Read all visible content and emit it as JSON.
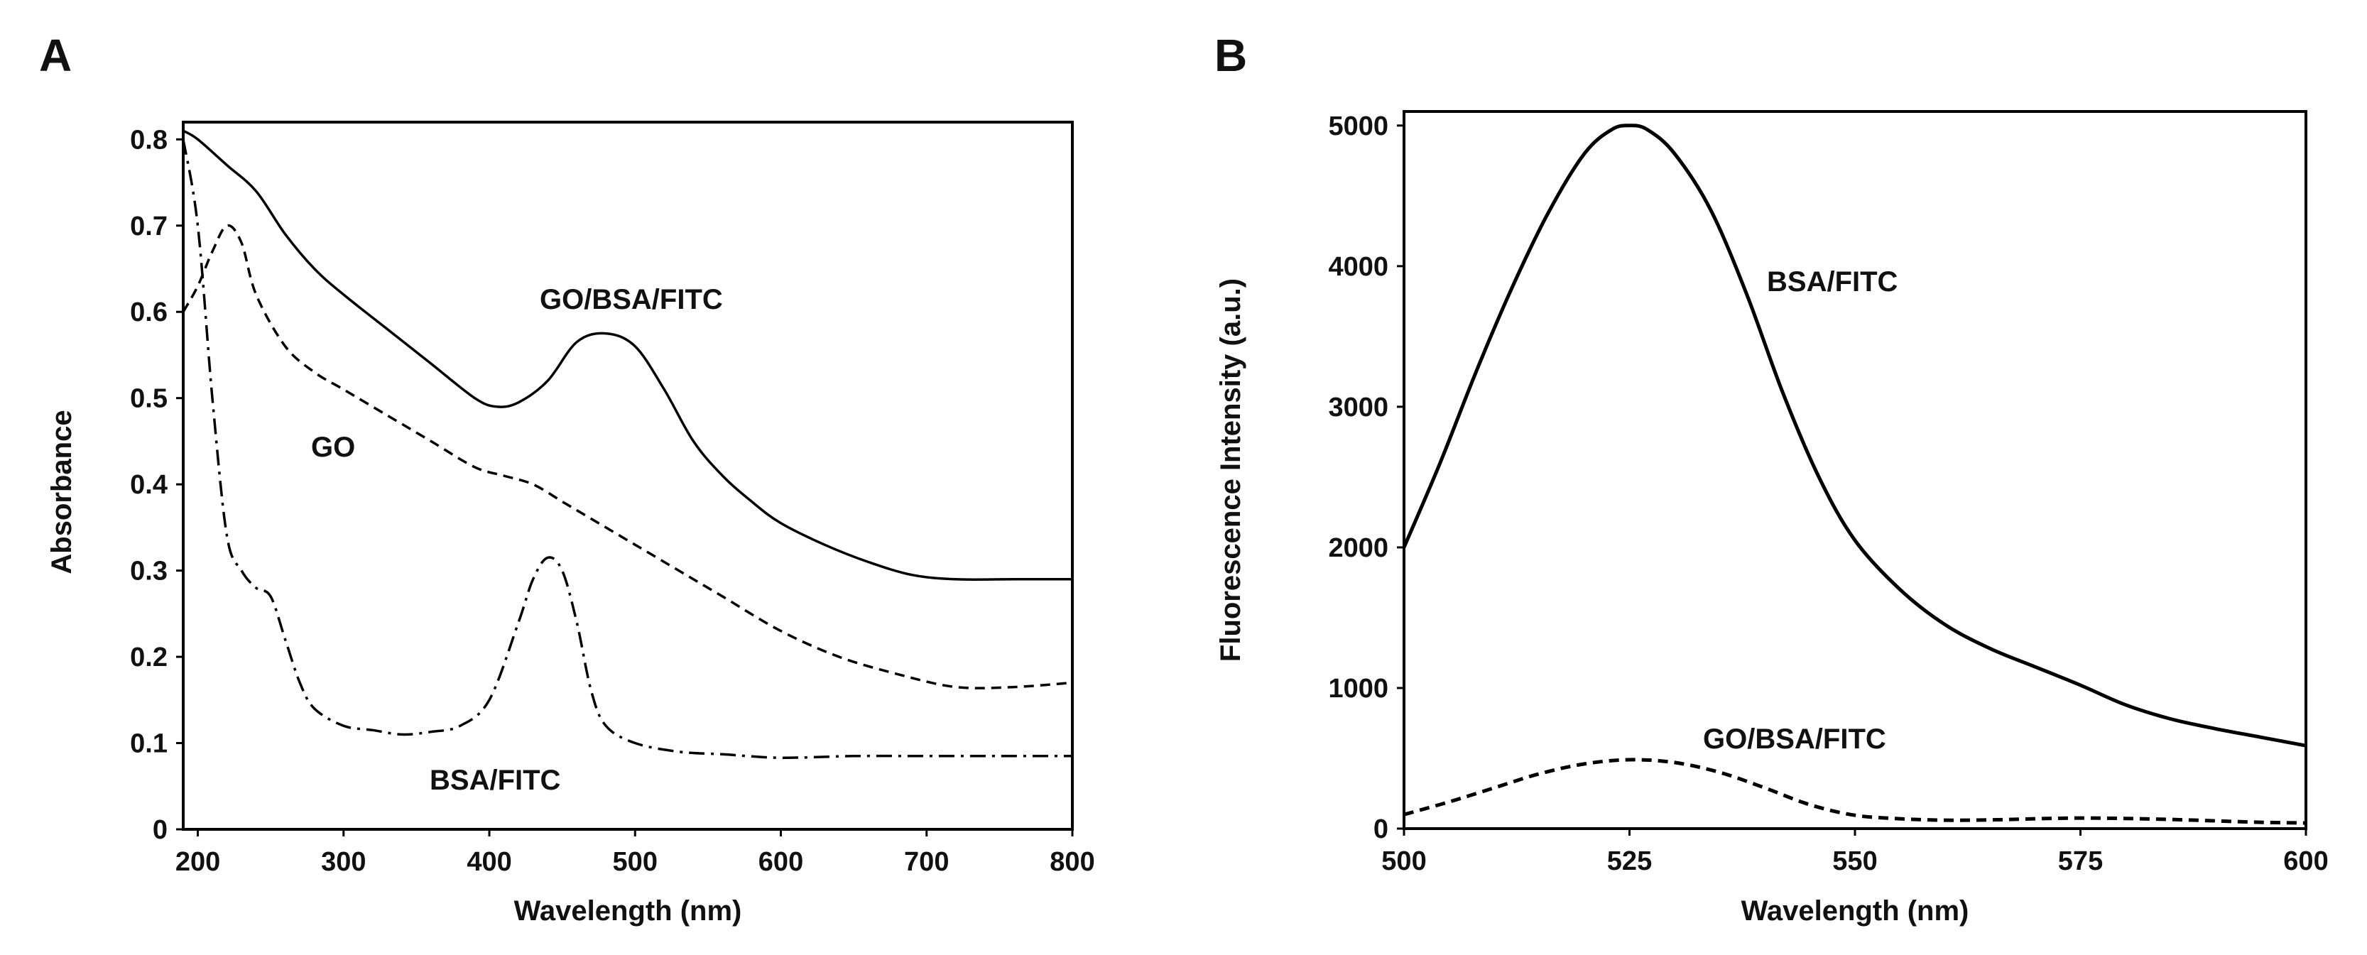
{
  "chart_data": [
    {
      "panel": "A",
      "type": "line",
      "xlabel": "Wavelength (nm)",
      "ylabel": "Absorbance",
      "xlim": [
        190,
        800
      ],
      "ylim": [
        0,
        0.82
      ],
      "xticks": [
        200,
        300,
        400,
        500,
        600,
        700,
        800
      ],
      "xtick_labels": [
        "200",
        "300",
        "400",
        "500",
        "600",
        "700",
        "800"
      ],
      "yticks": [
        0,
        0.1,
        0.2,
        0.3,
        0.4,
        0.5,
        0.6,
        0.7,
        0.8
      ],
      "ytick_labels": [
        "0",
        "0.1",
        "0.2",
        "0.3",
        "0.4",
        "0.5",
        "0.6",
        "0.7",
        "0.8"
      ],
      "series": [
        {
          "name": "GO/BSA/FITC",
          "style": "solid",
          "x": [
            190,
            200,
            220,
            240,
            260,
            280,
            300,
            330,
            360,
            390,
            405,
            420,
            440,
            460,
            480,
            500,
            520,
            540,
            560,
            580,
            600,
            630,
            660,
            690,
            720,
            760,
            800
          ],
          "y": [
            0.81,
            0.8,
            0.77,
            0.74,
            0.69,
            0.65,
            0.62,
            0.58,
            0.54,
            0.5,
            0.49,
            0.495,
            0.52,
            0.565,
            0.575,
            0.56,
            0.51,
            0.45,
            0.41,
            0.38,
            0.355,
            0.33,
            0.31,
            0.295,
            0.29,
            0.29,
            0.29
          ]
        },
        {
          "name": "GO",
          "style": "dashed",
          "x": [
            190,
            200,
            210,
            220,
            230,
            240,
            260,
            280,
            300,
            330,
            360,
            390,
            410,
            430,
            450,
            470,
            500,
            530,
            560,
            600,
            640,
            680,
            720,
            760,
            800
          ],
          "y": [
            0.6,
            0.63,
            0.67,
            0.7,
            0.68,
            0.62,
            0.56,
            0.53,
            0.51,
            0.48,
            0.45,
            0.42,
            0.41,
            0.4,
            0.38,
            0.36,
            0.33,
            0.3,
            0.27,
            0.23,
            0.2,
            0.18,
            0.165,
            0.165,
            0.17
          ]
        },
        {
          "name": "BSA/FITC",
          "style": "dashdot",
          "x": [
            190,
            200,
            210,
            220,
            230,
            240,
            250,
            260,
            270,
            280,
            300,
            320,
            340,
            360,
            380,
            400,
            420,
            430,
            440,
            450,
            460,
            470,
            480,
            500,
            530,
            560,
            600,
            650,
            700,
            750,
            800
          ],
          "y": [
            0.8,
            0.7,
            0.5,
            0.34,
            0.3,
            0.28,
            0.27,
            0.22,
            0.17,
            0.14,
            0.12,
            0.115,
            0.11,
            0.113,
            0.12,
            0.15,
            0.24,
            0.29,
            0.315,
            0.3,
            0.24,
            0.16,
            0.12,
            0.1,
            0.09,
            0.087,
            0.083,
            0.085,
            0.085,
            0.085,
            0.085
          ]
        }
      ]
    },
    {
      "panel": "B",
      "type": "line",
      "xlabel": "Wavelength (nm)",
      "ylabel": "Fluorescence Intensity (a.u.)",
      "xlim": [
        500,
        600
      ],
      "ylim": [
        0,
        5100
      ],
      "xticks": [
        500,
        525,
        550,
        575,
        600
      ],
      "xtick_labels": [
        "500",
        "525",
        "550",
        "575",
        "600"
      ],
      "yticks": [
        0,
        1000,
        2000,
        3000,
        4000,
        5000
      ],
      "ytick_labels": [
        "0",
        "1000",
        "2000",
        "3000",
        "4000",
        "5000"
      ],
      "series": [
        {
          "name": "BSA/FITC",
          "style": "solid",
          "x": [
            500,
            504,
            508,
            512,
            516,
            520,
            523,
            525,
            527,
            530,
            534,
            538,
            542,
            546,
            550,
            555,
            560,
            565,
            570,
            575,
            580,
            585,
            590,
            595,
            600
          ],
          "y": [
            2000,
            2600,
            3250,
            3850,
            4380,
            4800,
            4970,
            5000,
            4970,
            4800,
            4400,
            3800,
            3100,
            2500,
            2050,
            1700,
            1450,
            1280,
            1150,
            1020,
            880,
            780,
            710,
            650,
            590
          ]
        },
        {
          "name": "GO/BSA/FITC",
          "style": "dashed",
          "x": [
            500,
            505,
            510,
            515,
            520,
            525,
            530,
            535,
            540,
            545,
            550,
            555,
            560,
            565,
            570,
            575,
            580,
            585,
            590,
            595,
            600
          ],
          "y": [
            100,
            190,
            290,
            390,
            460,
            490,
            470,
            400,
            290,
            170,
            95,
            70,
            60,
            62,
            70,
            75,
            72,
            65,
            55,
            45,
            40
          ]
        }
      ]
    }
  ],
  "panel_a": {
    "letter": "A",
    "xlabel": "Wavelength (nm)",
    "ylabel": "Absorbance",
    "labels": {
      "go_bsa_fitc": "GO/BSA/FITC",
      "go": "GO",
      "bsa_fitc": "BSA/FITC"
    }
  },
  "panel_b": {
    "letter": "B",
    "xlabel": "Wavelength (nm)",
    "ylabel": "Fluorescence Intensity (a.u.)",
    "labels": {
      "bsa_fitc": "BSA/FITC",
      "go_bsa_fitc": "GO/BSA/FITC"
    }
  }
}
